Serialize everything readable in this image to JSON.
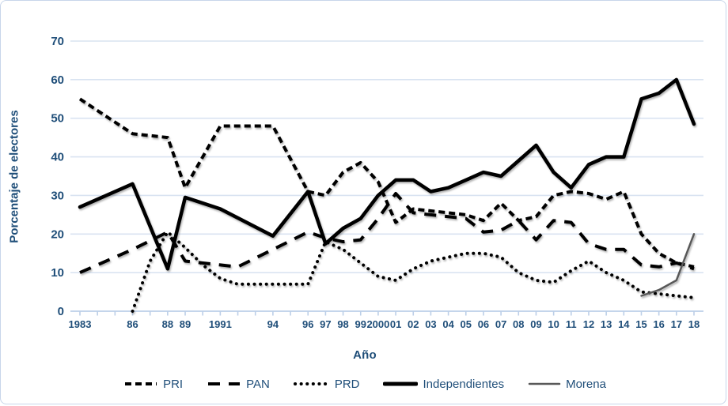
{
  "y_axis": {
    "title": "Porcentaje de electores",
    "ticks": [
      0,
      10,
      20,
      30,
      40,
      50,
      60,
      70
    ],
    "min": 0,
    "max": 70
  },
  "x_axis": {
    "title": "Año",
    "year_min": 1983,
    "year_max": 2018,
    "labels": [
      {
        "year": 1983,
        "text": "1983"
      },
      {
        "year": 1986,
        "text": "86"
      },
      {
        "year": 1988,
        "text": "88"
      },
      {
        "year": 1989,
        "text": "89"
      },
      {
        "year": 1991,
        "text": "1991"
      },
      {
        "year": 1994,
        "text": "94"
      },
      {
        "year": 1996,
        "text": "96"
      },
      {
        "year": 1997,
        "text": "97"
      },
      {
        "year": 1998,
        "text": "98"
      },
      {
        "year": 1999,
        "text": "99"
      },
      {
        "year": 2000,
        "text": "2000"
      },
      {
        "year": 2001,
        "text": "01"
      },
      {
        "year": 2002,
        "text": "02"
      },
      {
        "year": 2003,
        "text": "03"
      },
      {
        "year": 2004,
        "text": "04"
      },
      {
        "year": 2005,
        "text": "05"
      },
      {
        "year": 2006,
        "text": "06"
      },
      {
        "year": 2007,
        "text": "07"
      },
      {
        "year": 2008,
        "text": "08"
      },
      {
        "year": 2009,
        "text": "09"
      },
      {
        "year": 2010,
        "text": "10"
      },
      {
        "year": 2011,
        "text": "11"
      },
      {
        "year": 2012,
        "text": "12"
      },
      {
        "year": 2013,
        "text": "13"
      },
      {
        "year": 2014,
        "text": "14"
      },
      {
        "year": 2015,
        "text": "15"
      },
      {
        "year": 2016,
        "text": "16"
      },
      {
        "year": 2017,
        "text": "17"
      },
      {
        "year": 2018,
        "text": "18"
      }
    ]
  },
  "colors": {
    "text_blue": "#1f4e79",
    "gridline": "#d9e3f1",
    "axis_line": "#bccfe8",
    "series_black": "#000000",
    "morena_gray": "#595959"
  },
  "chart_data": {
    "type": "line",
    "title": "",
    "xlabel": "Año",
    "ylabel": "Porcentaje de electores",
    "ylim": [
      0,
      70
    ],
    "xlim": [
      1983,
      2018
    ],
    "grid": "horizontal",
    "legend_position": "bottom",
    "series": [
      {
        "name": "PRI",
        "color": "#000000",
        "width": 4,
        "dash": "8 5",
        "linecap": "butt",
        "points": [
          [
            1983,
            55
          ],
          [
            1986,
            46
          ],
          [
            1987,
            45.5
          ],
          [
            1988,
            45
          ],
          [
            1989,
            32
          ],
          [
            1991,
            48
          ],
          [
            1994,
            48
          ],
          [
            1996,
            31
          ],
          [
            1997,
            30
          ],
          [
            1998,
            36
          ],
          [
            1999,
            38.5
          ],
          [
            2000,
            33.5
          ],
          [
            2001,
            23
          ],
          [
            2002,
            26.5
          ],
          [
            2003,
            26
          ],
          [
            2004,
            25.5
          ],
          [
            2005,
            25
          ],
          [
            2006,
            23.5
          ],
          [
            2007,
            28
          ],
          [
            2008,
            23.5
          ],
          [
            2009,
            24.5
          ],
          [
            2010,
            30
          ],
          [
            2011,
            31
          ],
          [
            2012,
            30.5
          ],
          [
            2013,
            29
          ],
          [
            2014,
            31
          ],
          [
            2015,
            20
          ],
          [
            2016,
            15
          ],
          [
            2017,
            12.5
          ],
          [
            2018,
            11.5
          ]
        ]
      },
      {
        "name": "PAN",
        "color": "#000000",
        "width": 4,
        "dash": "15 11",
        "linecap": "butt",
        "points": [
          [
            1983,
            10
          ],
          [
            1986,
            16
          ],
          [
            1988,
            20.5
          ],
          [
            1989,
            13
          ],
          [
            1991,
            12
          ],
          [
            1992,
            11.5
          ],
          [
            1994,
            16
          ],
          [
            1996,
            20.5
          ],
          [
            1997,
            19
          ],
          [
            1998,
            18
          ],
          [
            1999,
            18.5
          ],
          [
            2000,
            24
          ],
          [
            2001,
            30.5
          ],
          [
            2002,
            25.5
          ],
          [
            2003,
            25
          ],
          [
            2004,
            24.5
          ],
          [
            2005,
            24
          ],
          [
            2006,
            20.5
          ],
          [
            2007,
            21
          ],
          [
            2008,
            23.5
          ],
          [
            2009,
            18.5
          ],
          [
            2010,
            23.5
          ],
          [
            2011,
            23
          ],
          [
            2012,
            17.5
          ],
          [
            2013,
            16
          ],
          [
            2014,
            16
          ],
          [
            2015,
            12
          ],
          [
            2016,
            11.5
          ],
          [
            2017,
            12.5
          ],
          [
            2018,
            11
          ]
        ]
      },
      {
        "name": "PRD",
        "color": "#000000",
        "width": 4,
        "dash": "0.1 7.5",
        "linecap": "round",
        "points": [
          [
            1986,
            0
          ],
          [
            1987,
            13
          ],
          [
            1988,
            20.5
          ],
          [
            1989,
            16.5
          ],
          [
            1990,
            12
          ],
          [
            1991,
            8.5
          ],
          [
            1992,
            7
          ],
          [
            1994,
            7
          ],
          [
            1996,
            7
          ],
          [
            1997,
            18
          ],
          [
            1998,
            16
          ],
          [
            1999,
            12.5
          ],
          [
            2000,
            9
          ],
          [
            2001,
            8
          ],
          [
            2002,
            11
          ],
          [
            2003,
            13
          ],
          [
            2004,
            14
          ],
          [
            2005,
            15
          ],
          [
            2006,
            15
          ],
          [
            2007,
            14
          ],
          [
            2008,
            10
          ],
          [
            2009,
            8
          ],
          [
            2010,
            7.5
          ],
          [
            2011,
            10.5
          ],
          [
            2012,
            13
          ],
          [
            2013,
            10
          ],
          [
            2014,
            8
          ],
          [
            2015,
            5
          ],
          [
            2016,
            4.5
          ],
          [
            2017,
            4
          ],
          [
            2018,
            3.5
          ]
        ]
      },
      {
        "name": "Independientes",
        "color": "#000000",
        "width": 4.5,
        "dash": null,
        "linecap": "round",
        "points": [
          [
            1983,
            27
          ],
          [
            1986,
            33
          ],
          [
            1988,
            11
          ],
          [
            1989,
            29.5
          ],
          [
            1991,
            26.5
          ],
          [
            1994,
            19.5
          ],
          [
            1996,
            31
          ],
          [
            1997,
            17.5
          ],
          [
            1998,
            21.5
          ],
          [
            1999,
            24
          ],
          [
            2000,
            30
          ],
          [
            2001,
            34
          ],
          [
            2002,
            34
          ],
          [
            2003,
            31
          ],
          [
            2004,
            32
          ],
          [
            2005,
            34
          ],
          [
            2006,
            36
          ],
          [
            2007,
            35
          ],
          [
            2008,
            39
          ],
          [
            2009,
            43
          ],
          [
            2010,
            36
          ],
          [
            2011,
            32
          ],
          [
            2012,
            38
          ],
          [
            2013,
            40
          ],
          [
            2014,
            40
          ],
          [
            2015,
            55
          ],
          [
            2016,
            56.5
          ],
          [
            2017,
            60
          ],
          [
            2018,
            48.5
          ]
        ]
      },
      {
        "name": "Morena",
        "color": "#595959",
        "width": 2.5,
        "dash": null,
        "linecap": "round",
        "points": [
          [
            2015,
            4
          ],
          [
            2016,
            5.5
          ],
          [
            2017,
            8
          ],
          [
            2018,
            20
          ]
        ]
      }
    ]
  }
}
